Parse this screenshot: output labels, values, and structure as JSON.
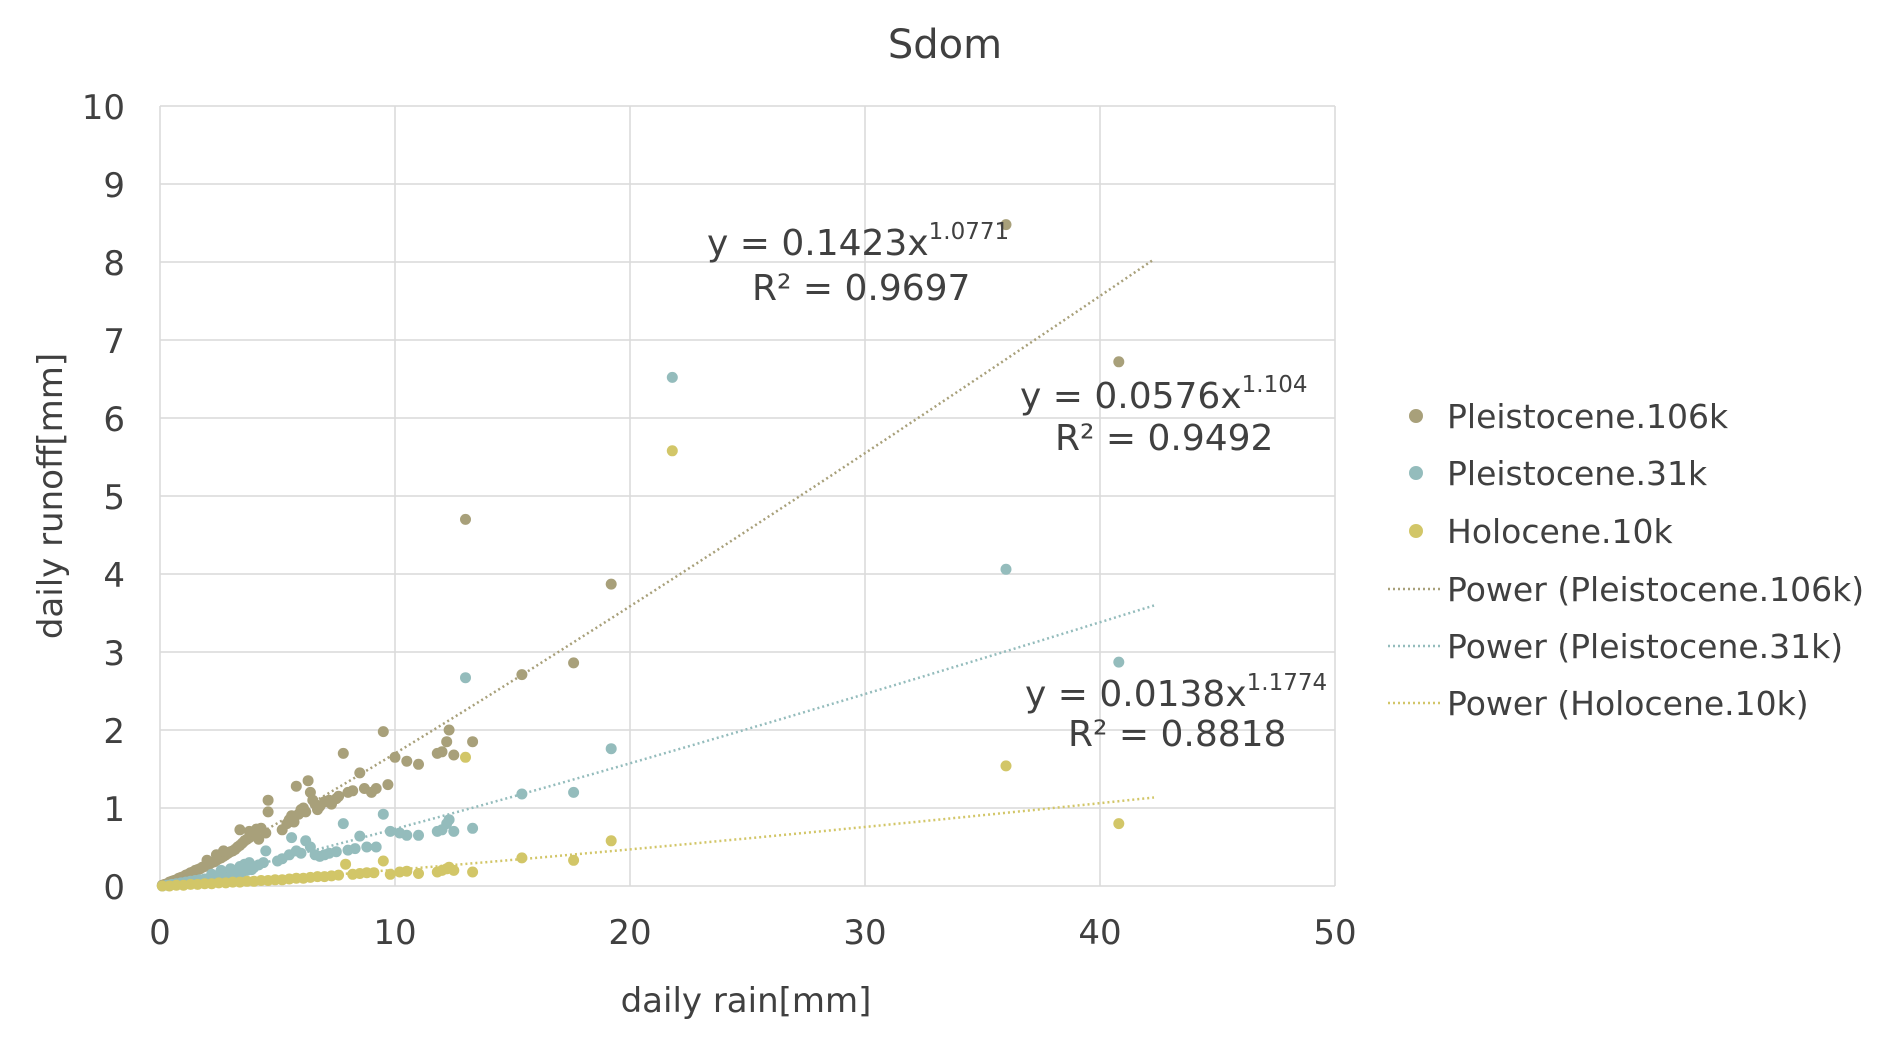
{
  "chart_data": {
    "type": "scatter",
    "title": "Sdom",
    "xlabel": "daily rain[mm]",
    "ylabel": "daily runoff[mm]",
    "xlim": [
      0,
      50
    ],
    "ylim": [
      0,
      10
    ],
    "xticks": [
      "0",
      "10",
      "20",
      "30",
      "40",
      "50"
    ],
    "yticks": [
      "0",
      "1",
      "2",
      "3",
      "4",
      "5",
      "6",
      "7",
      "8",
      "9",
      "10"
    ],
    "grid": true,
    "legend_position": "right",
    "series": [
      {
        "name": "Pleistocene.106k",
        "color": "#a8a07a",
        "points": [
          [
            0.1,
            0.01
          ],
          [
            0.2,
            0.02
          ],
          [
            0.3,
            0.03
          ],
          [
            0.4,
            0.05
          ],
          [
            0.5,
            0.06
          ],
          [
            0.6,
            0.07
          ],
          [
            0.7,
            0.08
          ],
          [
            0.8,
            0.1
          ],
          [
            0.9,
            0.11
          ],
          [
            1.0,
            0.12
          ],
          [
            1.1,
            0.14
          ],
          [
            1.2,
            0.15
          ],
          [
            1.3,
            0.17
          ],
          [
            1.4,
            0.18
          ],
          [
            1.5,
            0.2
          ],
          [
            1.6,
            0.21
          ],
          [
            1.7,
            0.22
          ],
          [
            1.8,
            0.24
          ],
          [
            1.9,
            0.25
          ],
          [
            2.0,
            0.27
          ],
          [
            2.1,
            0.28
          ],
          [
            2.2,
            0.3
          ],
          [
            2.3,
            0.31
          ],
          [
            2.4,
            0.33
          ],
          [
            2.5,
            0.35
          ],
          [
            2.6,
            0.36
          ],
          [
            2.7,
            0.38
          ],
          [
            2.8,
            0.4
          ],
          [
            2.9,
            0.42
          ],
          [
            3.0,
            0.44
          ],
          [
            3.1,
            0.45
          ],
          [
            3.2,
            0.47
          ],
          [
            3.3,
            0.5
          ],
          [
            3.4,
            0.52
          ],
          [
            3.5,
            0.55
          ],
          [
            3.6,
            0.58
          ],
          [
            3.7,
            0.6
          ],
          [
            3.8,
            0.62
          ],
          [
            3.9,
            0.65
          ],
          [
            4.0,
            0.68
          ],
          [
            2.0,
            0.33
          ],
          [
            2.4,
            0.4
          ],
          [
            2.7,
            0.45
          ],
          [
            3.4,
            0.72
          ],
          [
            3.8,
            0.7
          ],
          [
            4.1,
            0.73
          ],
          [
            4.3,
            0.74
          ],
          [
            4.5,
            0.68
          ],
          [
            4.2,
            0.6
          ],
          [
            4.6,
            0.95
          ],
          [
            4.6,
            1.1
          ],
          [
            5.2,
            0.72
          ],
          [
            5.4,
            0.8
          ],
          [
            5.5,
            0.85
          ],
          [
            5.6,
            0.9
          ],
          [
            5.7,
            0.82
          ],
          [
            5.8,
            1.28
          ],
          [
            5.9,
            0.92
          ],
          [
            6.0,
            0.98
          ],
          [
            6.1,
            1.0
          ],
          [
            6.2,
            0.95
          ],
          [
            6.3,
            1.35
          ],
          [
            6.4,
            1.2
          ],
          [
            6.5,
            1.1
          ],
          [
            6.6,
            1.05
          ],
          [
            6.7,
            0.98
          ],
          [
            6.8,
            1.02
          ],
          [
            7.0,
            1.08
          ],
          [
            7.2,
            1.1
          ],
          [
            7.3,
            1.05
          ],
          [
            7.5,
            1.12
          ],
          [
            7.6,
            1.15
          ],
          [
            7.8,
            1.7
          ],
          [
            8.0,
            1.2
          ],
          [
            8.2,
            1.22
          ],
          [
            8.5,
            1.45
          ],
          [
            8.7,
            1.25
          ],
          [
            9.0,
            1.2
          ],
          [
            9.2,
            1.25
          ],
          [
            9.5,
            1.98
          ],
          [
            9.7,
            1.3
          ],
          [
            10.0,
            1.65
          ],
          [
            10.5,
            1.6
          ],
          [
            11.0,
            1.56
          ],
          [
            11.8,
            1.7
          ],
          [
            12.0,
            1.72
          ],
          [
            12.2,
            1.85
          ],
          [
            12.3,
            2.0
          ],
          [
            12.5,
            1.68
          ],
          [
            13.0,
            4.7
          ],
          [
            13.3,
            1.85
          ],
          [
            15.4,
            2.71
          ],
          [
            17.6,
            2.86
          ],
          [
            19.2,
            3.87
          ],
          [
            36.0,
            8.48
          ],
          [
            40.8,
            6.72
          ]
        ]
      },
      {
        "name": "Pleistocene.31k",
        "color": "#94bcbc",
        "points": [
          [
            0.1,
            0.0
          ],
          [
            0.3,
            0.01
          ],
          [
            0.5,
            0.02
          ],
          [
            0.7,
            0.03
          ],
          [
            0.9,
            0.04
          ],
          [
            1.1,
            0.05
          ],
          [
            1.3,
            0.06
          ],
          [
            1.5,
            0.07
          ],
          [
            1.7,
            0.08
          ],
          [
            1.9,
            0.09
          ],
          [
            2.1,
            0.1
          ],
          [
            2.3,
            0.11
          ],
          [
            2.5,
            0.12
          ],
          [
            2.7,
            0.13
          ],
          [
            2.9,
            0.14
          ],
          [
            3.1,
            0.16
          ],
          [
            3.3,
            0.17
          ],
          [
            3.5,
            0.18
          ],
          [
            3.7,
            0.2
          ],
          [
            3.9,
            0.21
          ],
          [
            2.2,
            0.15
          ],
          [
            2.6,
            0.2
          ],
          [
            3.0,
            0.22
          ],
          [
            3.4,
            0.25
          ],
          [
            3.6,
            0.28
          ],
          [
            3.8,
            0.3
          ],
          [
            4.0,
            0.24
          ],
          [
            4.2,
            0.27
          ],
          [
            4.4,
            0.3
          ],
          [
            4.5,
            0.45
          ],
          [
            5.0,
            0.32
          ],
          [
            5.2,
            0.35
          ],
          [
            5.5,
            0.4
          ],
          [
            5.6,
            0.62
          ],
          [
            5.8,
            0.45
          ],
          [
            6.0,
            0.42
          ],
          [
            6.2,
            0.58
          ],
          [
            6.4,
            0.5
          ],
          [
            6.6,
            0.4
          ],
          [
            6.8,
            0.38
          ],
          [
            7.0,
            0.4
          ],
          [
            7.2,
            0.42
          ],
          [
            7.5,
            0.44
          ],
          [
            7.8,
            0.8
          ],
          [
            8.0,
            0.46
          ],
          [
            8.3,
            0.48
          ],
          [
            8.5,
            0.64
          ],
          [
            8.8,
            0.5
          ],
          [
            9.2,
            0.5
          ],
          [
            9.5,
            0.92
          ],
          [
            9.8,
            0.7
          ],
          [
            10.2,
            0.68
          ],
          [
            10.5,
            0.65
          ],
          [
            11.0,
            0.65
          ],
          [
            11.8,
            0.7
          ],
          [
            12.0,
            0.72
          ],
          [
            12.2,
            0.8
          ],
          [
            12.3,
            0.85
          ],
          [
            12.5,
            0.7
          ],
          [
            13.0,
            2.67
          ],
          [
            13.3,
            0.74
          ],
          [
            15.4,
            1.18
          ],
          [
            17.6,
            1.2
          ],
          [
            19.2,
            1.76
          ],
          [
            21.8,
            6.52
          ],
          [
            36.0,
            4.06
          ],
          [
            40.8,
            2.87
          ]
        ]
      },
      {
        "name": "Holocene.10k",
        "color": "#d2c668",
        "points": [
          [
            0.1,
            0.0
          ],
          [
            0.4,
            0.0
          ],
          [
            0.7,
            0.01
          ],
          [
            1.0,
            0.01
          ],
          [
            1.3,
            0.02
          ],
          [
            1.6,
            0.02
          ],
          [
            1.9,
            0.03
          ],
          [
            2.2,
            0.03
          ],
          [
            2.5,
            0.04
          ],
          [
            2.8,
            0.04
          ],
          [
            3.1,
            0.05
          ],
          [
            3.4,
            0.05
          ],
          [
            3.7,
            0.06
          ],
          [
            4.0,
            0.06
          ],
          [
            4.3,
            0.07
          ],
          [
            4.6,
            0.07
          ],
          [
            4.9,
            0.08
          ],
          [
            5.2,
            0.08
          ],
          [
            5.5,
            0.09
          ],
          [
            5.8,
            0.1
          ],
          [
            6.1,
            0.1
          ],
          [
            6.4,
            0.11
          ],
          [
            6.7,
            0.12
          ],
          [
            7.0,
            0.12
          ],
          [
            7.3,
            0.13
          ],
          [
            7.6,
            0.14
          ],
          [
            7.9,
            0.28
          ],
          [
            8.2,
            0.15
          ],
          [
            8.5,
            0.16
          ],
          [
            8.8,
            0.17
          ],
          [
            9.1,
            0.17
          ],
          [
            9.5,
            0.32
          ],
          [
            9.8,
            0.15
          ],
          [
            10.2,
            0.18
          ],
          [
            10.5,
            0.19
          ],
          [
            11.0,
            0.16
          ],
          [
            11.8,
            0.18
          ],
          [
            12.0,
            0.2
          ],
          [
            12.2,
            0.22
          ],
          [
            12.3,
            0.24
          ],
          [
            12.5,
            0.2
          ],
          [
            13.0,
            1.65
          ],
          [
            13.3,
            0.18
          ],
          [
            15.4,
            0.36
          ],
          [
            17.6,
            0.33
          ],
          [
            19.2,
            0.58
          ],
          [
            21.8,
            5.58
          ],
          [
            36.0,
            1.54
          ],
          [
            40.8,
            0.8
          ]
        ]
      }
    ],
    "trendlines": [
      {
        "name": "Power (Pleistocene.106k)",
        "color": "#a8a07a",
        "a": 0.1423,
        "b": 1.0771,
        "x_range": [
          0.05,
          42.3
        ],
        "equation_text": "y = 0.1423x",
        "exponent_text": "1.0771",
        "r2_text": "R² = 0.9697"
      },
      {
        "name": "Power (Pleistocene.31k)",
        "color": "#94bcbc",
        "a": 0.0576,
        "b": 1.104,
        "x_range": [
          0.05,
          42.3
        ],
        "equation_text": "y = 0.0576x",
        "exponent_text": "1.104",
        "r2_text": "R² = 0.9492"
      },
      {
        "name": "Power (Holocene.10k)",
        "color": "#d2c668",
        "a": 0.0138,
        "b": 1.1774,
        "x_range": [
          0.05,
          42.3
        ],
        "equation_text": "y = 0.0138x",
        "exponent_text": "1.1774",
        "r2_text": "R² = 0.8818"
      }
    ]
  }
}
